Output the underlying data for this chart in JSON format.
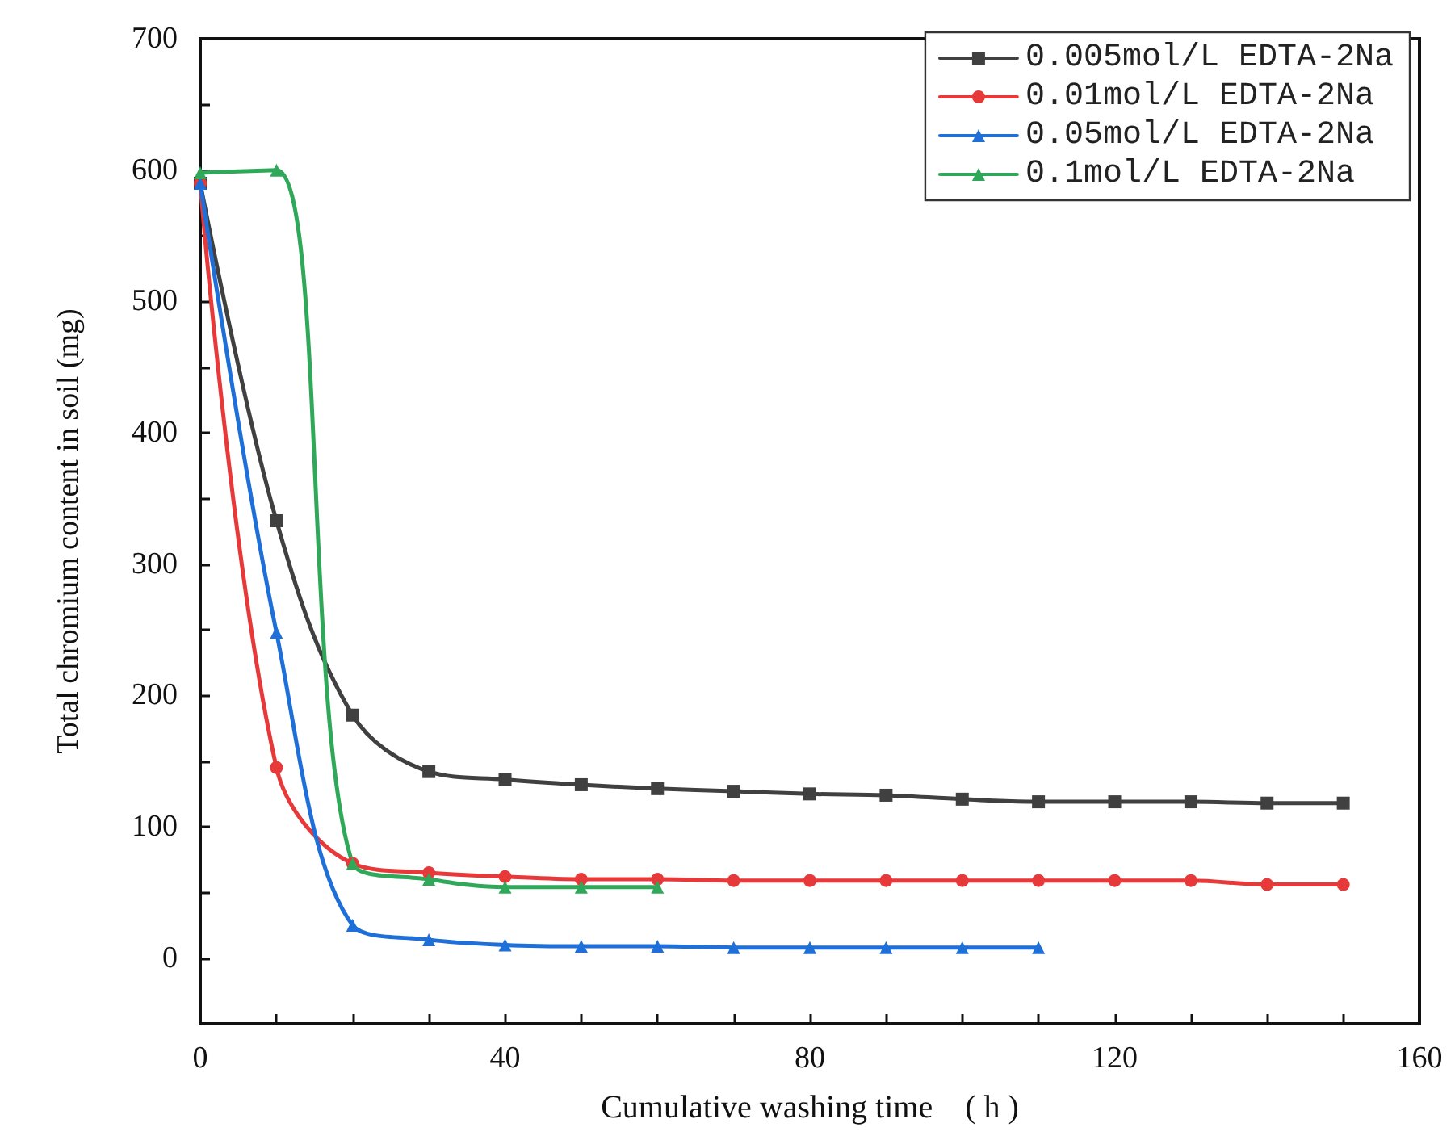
{
  "chart_data": {
    "type": "line",
    "xlabel": "Cumulative washing time　( h )",
    "ylabel": "Total chromium content in soil (mg)",
    "xlim": [
      0,
      160
    ],
    "xticks": [
      0,
      40,
      80,
      120,
      160
    ],
    "ylim": [
      -50,
      700
    ],
    "yticks": [
      0,
      100,
      200,
      300,
      400,
      500,
      600,
      700
    ],
    "grid": false,
    "legend": "top right",
    "line_style": "solid",
    "series": [
      {
        "name": "0.005mol/L EDTA-2Na",
        "color": "#404040",
        "marker": "square",
        "x": [
          0,
          10,
          20,
          30,
          40,
          50,
          60,
          70,
          80,
          90,
          100,
          110,
          120,
          130,
          140,
          150
        ],
        "values": [
          590,
          333,
          185,
          142,
          136,
          132,
          129,
          127,
          125,
          124,
          121,
          119,
          119,
          119,
          118,
          118
        ]
      },
      {
        "name": "0.01mol/L EDTA-2Na",
        "color": "#e8393a",
        "marker": "circle",
        "x": [
          0,
          10,
          20,
          30,
          40,
          50,
          60,
          70,
          80,
          90,
          100,
          110,
          120,
          130,
          140,
          150
        ],
        "values": [
          590,
          145,
          72,
          65,
          62,
          60,
          60,
          59,
          59,
          59,
          59,
          59,
          59,
          59,
          56,
          56
        ]
      },
      {
        "name": "0.05mol/L EDTA-2Na",
        "color": "#1f6fd8",
        "marker": "triangle",
        "x": [
          0,
          10,
          20,
          30,
          40,
          50,
          60,
          70,
          80,
          90,
          100,
          110
        ],
        "values": [
          590,
          248,
          25,
          14,
          10,
          9,
          9,
          8,
          8,
          8,
          8,
          8
        ]
      },
      {
        "name": "0.1mol/L EDTA-2Na",
        "color": "#2fa85a",
        "marker": "triangle",
        "x": [
          0,
          10,
          20,
          30,
          40,
          50,
          60
        ],
        "values": [
          598,
          600,
          72,
          60,
          54,
          54,
          54
        ]
      }
    ]
  }
}
